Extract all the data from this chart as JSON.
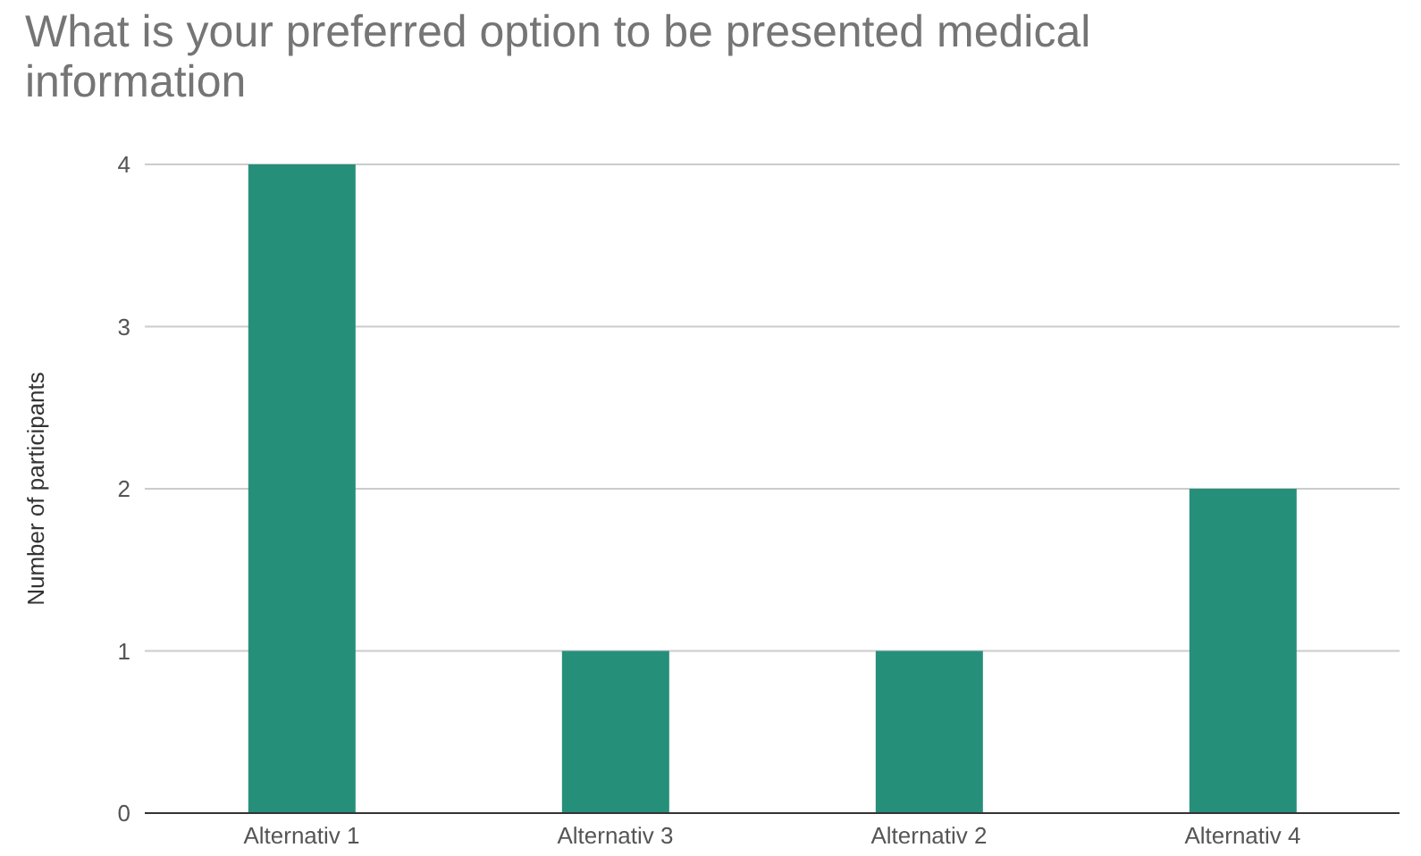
{
  "chart_data": {
    "type": "bar",
    "title": "What is your preferred option to be presented medical information",
    "ylabel": "Number of participants",
    "categories": [
      "Alternativ 1",
      "Alternativ 3",
      "Alternativ 2",
      "Alternativ 4"
    ],
    "values": [
      4,
      1,
      1,
      2
    ],
    "color": "#268f7a",
    "ylim": [
      0,
      4
    ],
    "yticks": [
      0,
      1,
      2,
      3,
      4
    ],
    "grid": "y"
  }
}
